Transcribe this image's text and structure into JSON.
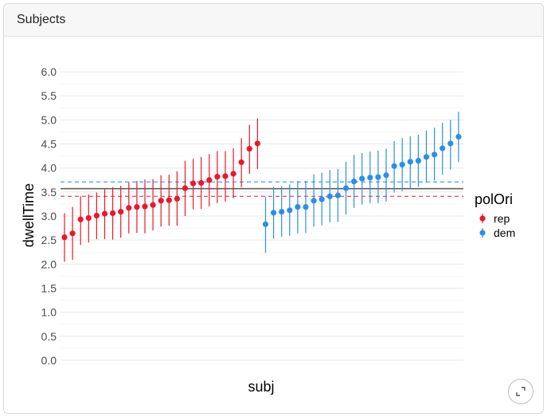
{
  "card": {
    "title": "Subjects"
  },
  "icons": {
    "expand": "expand-icon"
  },
  "chart_data": {
    "type": "scatter",
    "title": "",
    "xlabel": "subj",
    "ylabel": "dwellTime",
    "ylim": [
      -0.25,
      6.25
    ],
    "yticks": [
      "0.0",
      "0.5",
      "1.0",
      "1.5",
      "2.0",
      "2.5",
      "3.0",
      "3.5",
      "4.0",
      "4.5",
      "5.0",
      "5.5",
      "6.0"
    ],
    "grid": true,
    "legend": {
      "title": "polOri",
      "position": "right",
      "entries": [
        "rep",
        "dem"
      ]
    },
    "colors": {
      "rep": "#e8192c",
      "dem": "#2d8ee6"
    },
    "grand_mean": 3.57,
    "series": [
      {
        "name": "rep",
        "mean_line": 3.41,
        "points": [
          {
            "y": 2.56,
            "lo": 2.05,
            "hi": 3.06
          },
          {
            "y": 2.64,
            "lo": 2.09,
            "hi": 3.19
          },
          {
            "y": 2.93,
            "lo": 2.4,
            "hi": 3.41
          },
          {
            "y": 2.96,
            "lo": 2.45,
            "hi": 3.45
          },
          {
            "y": 3.01,
            "lo": 2.52,
            "hi": 3.49
          },
          {
            "y": 3.05,
            "lo": 2.52,
            "hi": 3.56
          },
          {
            "y": 3.06,
            "lo": 2.51,
            "hi": 3.6
          },
          {
            "y": 3.09,
            "lo": 2.55,
            "hi": 3.63
          },
          {
            "y": 3.17,
            "lo": 2.64,
            "hi": 3.7
          },
          {
            "y": 3.19,
            "lo": 2.65,
            "hi": 3.73
          },
          {
            "y": 3.2,
            "lo": 2.64,
            "hi": 3.76
          },
          {
            "y": 3.23,
            "lo": 2.7,
            "hi": 3.77
          },
          {
            "y": 3.32,
            "lo": 2.78,
            "hi": 3.85
          },
          {
            "y": 3.33,
            "lo": 2.8,
            "hi": 3.86
          },
          {
            "y": 3.36,
            "lo": 2.8,
            "hi": 3.93
          },
          {
            "y": 3.58,
            "lo": 3.0,
            "hi": 4.15
          },
          {
            "y": 3.68,
            "lo": 3.14,
            "hi": 4.19
          },
          {
            "y": 3.69,
            "lo": 3.15,
            "hi": 4.23
          },
          {
            "y": 3.75,
            "lo": 3.2,
            "hi": 4.29
          },
          {
            "y": 3.82,
            "lo": 3.27,
            "hi": 4.35
          },
          {
            "y": 3.83,
            "lo": 3.3,
            "hi": 4.35
          },
          {
            "y": 3.88,
            "lo": 3.37,
            "hi": 4.41
          },
          {
            "y": 4.12,
            "lo": 3.6,
            "hi": 4.62
          },
          {
            "y": 4.4,
            "lo": 3.88,
            "hi": 4.9
          },
          {
            "y": 4.51,
            "lo": 3.98,
            "hi": 5.03
          }
        ]
      },
      {
        "name": "dem",
        "mean_line": 3.71,
        "points": [
          {
            "y": 2.83,
            "lo": 2.24,
            "hi": 3.4
          },
          {
            "y": 3.07,
            "lo": 2.53,
            "hi": 3.61
          },
          {
            "y": 3.09,
            "lo": 2.57,
            "hi": 3.62
          },
          {
            "y": 3.12,
            "lo": 2.59,
            "hi": 3.66
          },
          {
            "y": 3.19,
            "lo": 2.64,
            "hi": 3.73
          },
          {
            "y": 3.19,
            "lo": 2.65,
            "hi": 3.73
          },
          {
            "y": 3.32,
            "lo": 2.78,
            "hi": 3.87
          },
          {
            "y": 3.35,
            "lo": 2.81,
            "hi": 3.9
          },
          {
            "y": 3.41,
            "lo": 2.87,
            "hi": 3.96
          },
          {
            "y": 3.43,
            "lo": 2.88,
            "hi": 3.98
          },
          {
            "y": 3.58,
            "lo": 3.03,
            "hi": 4.13
          },
          {
            "y": 3.72,
            "lo": 3.17,
            "hi": 4.27
          },
          {
            "y": 3.78,
            "lo": 3.24,
            "hi": 4.31
          },
          {
            "y": 3.8,
            "lo": 3.27,
            "hi": 4.34
          },
          {
            "y": 3.81,
            "lo": 3.27,
            "hi": 4.36
          },
          {
            "y": 3.85,
            "lo": 3.3,
            "hi": 4.4
          },
          {
            "y": 4.04,
            "lo": 3.49,
            "hi": 4.56
          },
          {
            "y": 4.07,
            "lo": 3.52,
            "hi": 4.62
          },
          {
            "y": 4.13,
            "lo": 3.57,
            "hi": 4.66
          },
          {
            "y": 4.15,
            "lo": 3.61,
            "hi": 4.69
          },
          {
            "y": 4.23,
            "lo": 3.7,
            "hi": 4.78
          },
          {
            "y": 4.28,
            "lo": 3.74,
            "hi": 4.84
          },
          {
            "y": 4.41,
            "lo": 3.86,
            "hi": 4.94
          },
          {
            "y": 4.51,
            "lo": 3.97,
            "hi": 5.0
          },
          {
            "y": 4.65,
            "lo": 4.12,
            "hi": 5.17
          }
        ]
      }
    ]
  }
}
